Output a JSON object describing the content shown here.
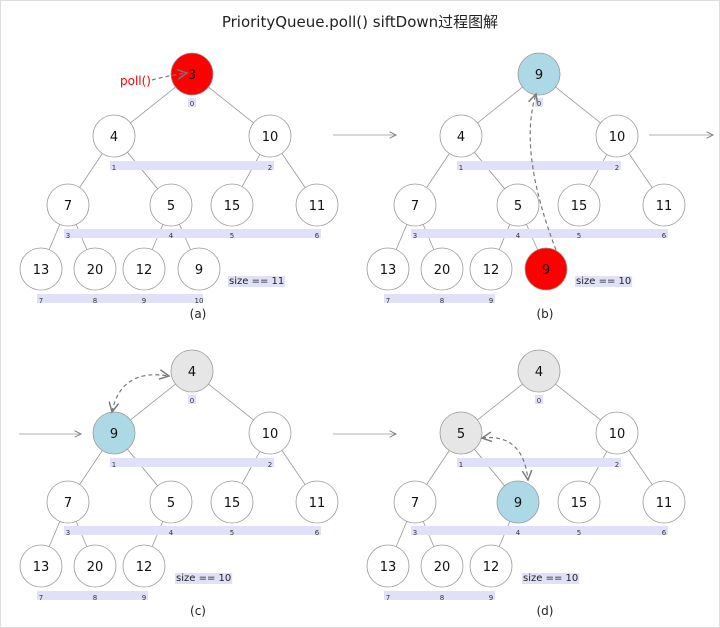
{
  "title": "PriorityQueue.poll() siftDown过程图解",
  "colors": {
    "removed": "#ff0000",
    "moving": "#add8e6",
    "settled": "#e6e6e6",
    "default": "#ffffff",
    "index_bar": "#e0e0f8",
    "poll_label": "#ff0000"
  },
  "poll_label": "poll()",
  "panels": [
    {
      "caption": "(a)",
      "size_label": "size == 11",
      "nodes": [
        "3",
        "4",
        "10",
        "7",
        "5",
        "15",
        "11",
        "13",
        "20",
        "12",
        "9"
      ],
      "states": [
        "removed",
        "default",
        "default",
        "default",
        "default",
        "default",
        "default",
        "default",
        "default",
        "default",
        "default"
      ],
      "indices": [
        "0",
        "1",
        "2",
        "3",
        "4",
        "5",
        "6",
        "7",
        "8",
        "9",
        "10"
      ]
    },
    {
      "caption": "(b)",
      "size_label": "size == 10",
      "nodes": [
        "9",
        "4",
        "10",
        "7",
        "5",
        "15",
        "11",
        "13",
        "20",
        "12",
        "9"
      ],
      "states": [
        "moving",
        "default",
        "default",
        "default",
        "default",
        "default",
        "default",
        "default",
        "default",
        "default",
        "removed"
      ],
      "indices": [
        "0",
        "1",
        "2",
        "3",
        "4",
        "5",
        "6",
        "7",
        "8",
        "9"
      ]
    },
    {
      "caption": "(c)",
      "size_label": "size == 10",
      "nodes": [
        "4",
        "9",
        "10",
        "7",
        "5",
        "15",
        "11",
        "13",
        "20",
        "12"
      ],
      "states": [
        "settled",
        "moving",
        "default",
        "default",
        "default",
        "default",
        "default",
        "default",
        "default",
        "default"
      ],
      "indices": [
        "0",
        "1",
        "2",
        "3",
        "4",
        "5",
        "6",
        "7",
        "8",
        "9"
      ]
    },
    {
      "caption": "(d)",
      "size_label": "size == 10",
      "nodes": [
        "4",
        "5",
        "10",
        "7",
        "9",
        "15",
        "11",
        "13",
        "20",
        "12"
      ],
      "states": [
        "settled",
        "settled",
        "default",
        "default",
        "moving",
        "default",
        "default",
        "default",
        "default",
        "default"
      ],
      "indices": [
        "0",
        "1",
        "2",
        "3",
        "4",
        "5",
        "6",
        "7",
        "8",
        "9"
      ]
    }
  ]
}
